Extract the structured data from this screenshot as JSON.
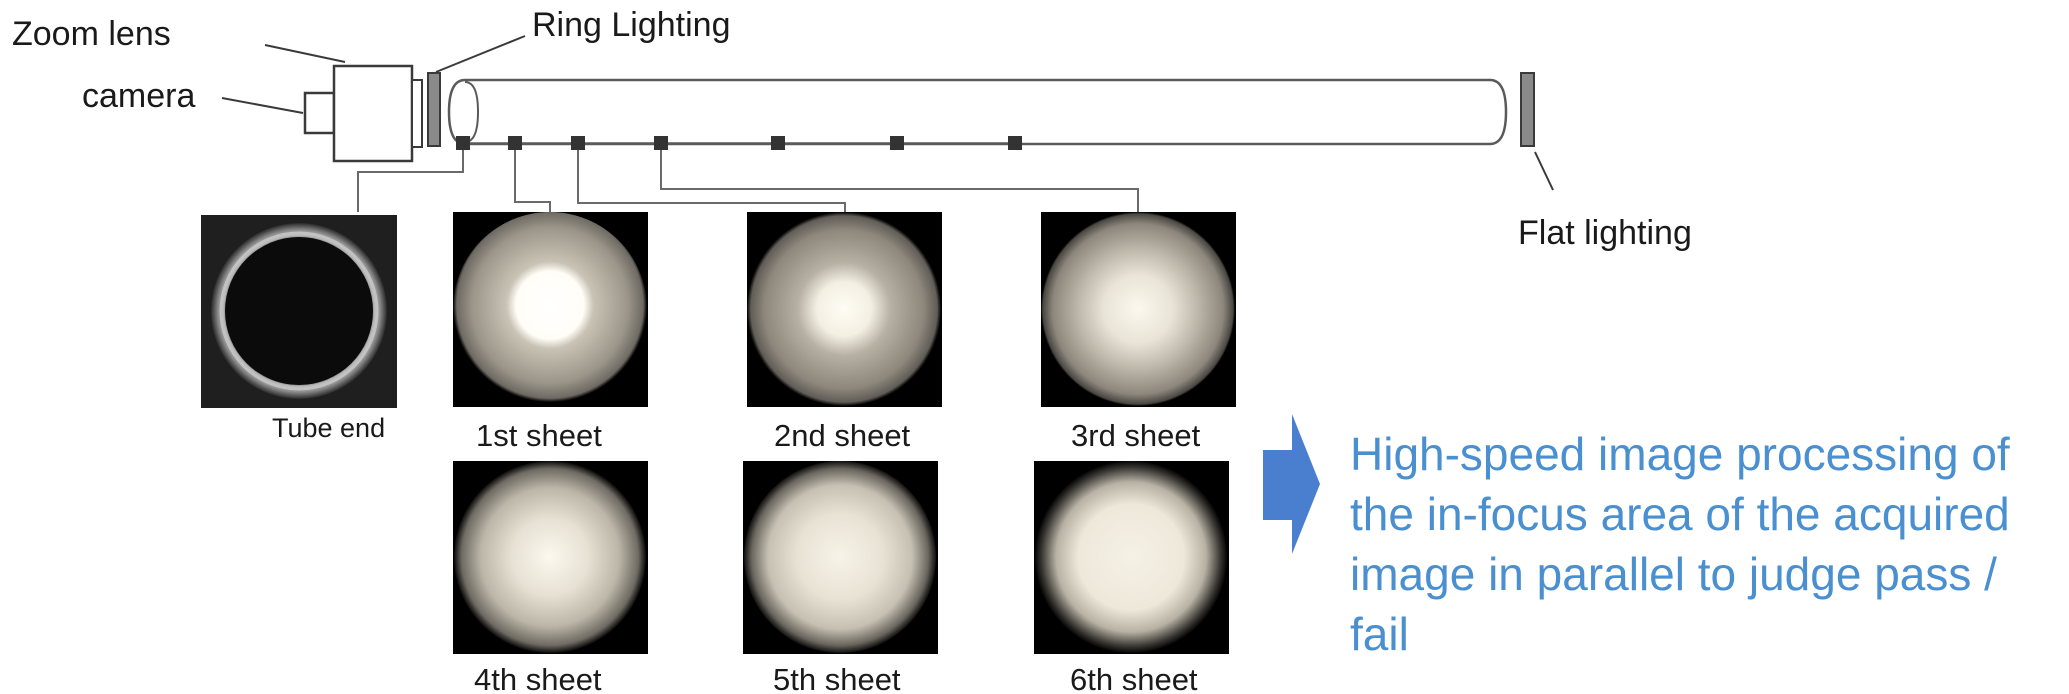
{
  "labels": {
    "zoom_lens": "Zoom lens",
    "camera": "camera",
    "ring_lighting": "Ring Lighting",
    "flat_lighting": "Flat lighting",
    "tube_end": "Tube end"
  },
  "sheets": [
    {
      "label": "1st sheet"
    },
    {
      "label": "2nd sheet"
    },
    {
      "label": "3rd sheet"
    },
    {
      "label": "4th sheet"
    },
    {
      "label": "5th sheet"
    },
    {
      "label": "6th sheet"
    }
  ],
  "result_text": {
    "line1": "High-speed image processing of",
    "line2": "the in-focus area of the acquired",
    "line3": "image in parallel to judge pass /",
    "line4": "fail"
  },
  "colors": {
    "result_text": "#4a8fd0",
    "arrow": "#4a7fcf",
    "frame": "#3a3a3a",
    "lighting": "#808080"
  }
}
